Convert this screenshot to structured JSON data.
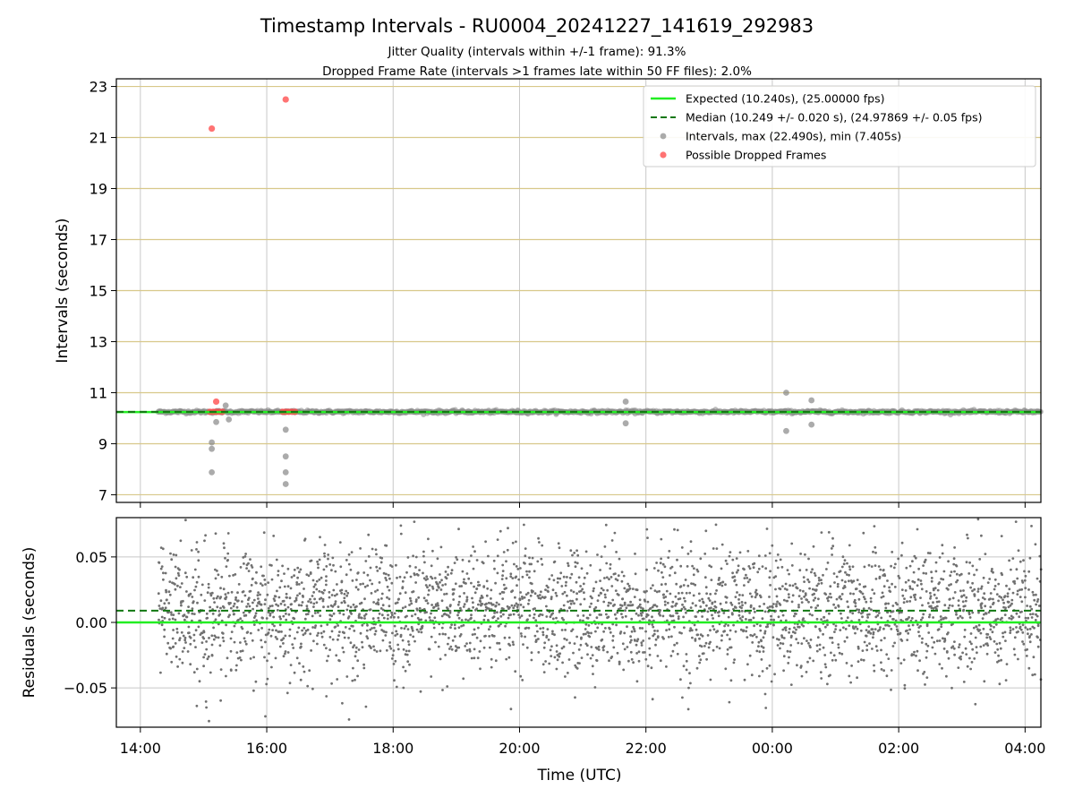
{
  "chart_data": [
    {
      "type": "scatter",
      "title": "Timestamp Intervals - RU0004_20241227_141619_292983",
      "subtitles": [
        "Jitter Quality (intervals within +/-1 frame): 91.3%",
        "Dropped Frame Rate (intervals >1 frames late within 50 FF files): 2.0%"
      ],
      "ylabel": "Intervals (seconds)",
      "xlim_hours": [
        13.62,
        28.25
      ],
      "ylim": [
        6.7,
        23.3
      ],
      "yticks": [
        7,
        9,
        11,
        13,
        15,
        17,
        19,
        21,
        23
      ],
      "grid": true,
      "legend": {
        "position": "top-right",
        "entries": [
          "Expected (10.240s), (25.00000 fps)",
          "Median (10.249 +/- 0.020 s), (24.97869 +/- 0.05 fps)",
          "Intervals, max (22.490s), min (7.405s)",
          "Possible Dropped Frames"
        ]
      },
      "expected": 10.24,
      "median": 10.249,
      "series_colors": {
        "expected": "#22ee22",
        "median": "#117711",
        "intervals": "#888888",
        "dropped": "#ff4444"
      },
      "intervals_range": [
        14.28,
        28.25
      ],
      "interval_outliers": [
        [
          15.13,
          9.05
        ],
        [
          15.13,
          8.8
        ],
        [
          15.13,
          7.88
        ],
        [
          15.2,
          9.85
        ],
        [
          15.35,
          10.5
        ],
        [
          15.4,
          9.95
        ],
        [
          16.3,
          9.55
        ],
        [
          16.3,
          8.5
        ],
        [
          16.3,
          7.88
        ],
        [
          16.3,
          7.42
        ],
        [
          21.68,
          10.65
        ],
        [
          21.68,
          9.8
        ],
        [
          24.22,
          11.0
        ],
        [
          24.22,
          9.5
        ],
        [
          24.62,
          10.7
        ],
        [
          24.62,
          9.75
        ]
      ],
      "dropped_frames": [
        [
          15.13,
          21.35
        ],
        [
          16.3,
          22.49
        ],
        [
          15.2,
          10.65
        ],
        [
          15.1,
          10.25
        ],
        [
          15.15,
          10.25
        ],
        [
          15.2,
          10.25
        ],
        [
          15.25,
          10.25
        ],
        [
          15.3,
          10.25
        ],
        [
          16.25,
          10.25
        ],
        [
          16.3,
          10.25
        ],
        [
          16.35,
          10.25
        ],
        [
          16.4,
          10.25
        ],
        [
          16.45,
          10.25
        ]
      ]
    },
    {
      "type": "scatter",
      "ylabel": "Residuals (seconds)",
      "xlabel": "Time (UTC)",
      "xlim_hours": [
        13.62,
        28.25
      ],
      "ylim": [
        -0.08,
        0.08
      ],
      "yticks": [
        -0.05,
        0.0,
        0.05
      ],
      "ytick_labels": [
        "−0.05",
        "0.00",
        "0.05"
      ],
      "xticks": [
        14,
        16,
        18,
        20,
        22,
        24,
        26,
        28
      ],
      "xtick_labels": [
        "14:00",
        "16:00",
        "18:00",
        "20:00",
        "22:00",
        "00:00",
        "02:00",
        "04:00"
      ],
      "grid": true,
      "expected_residual": 0.0,
      "median_residual": 0.009,
      "residual_range": [
        14.28,
        28.25
      ],
      "residual_spread": 0.025
    }
  ]
}
